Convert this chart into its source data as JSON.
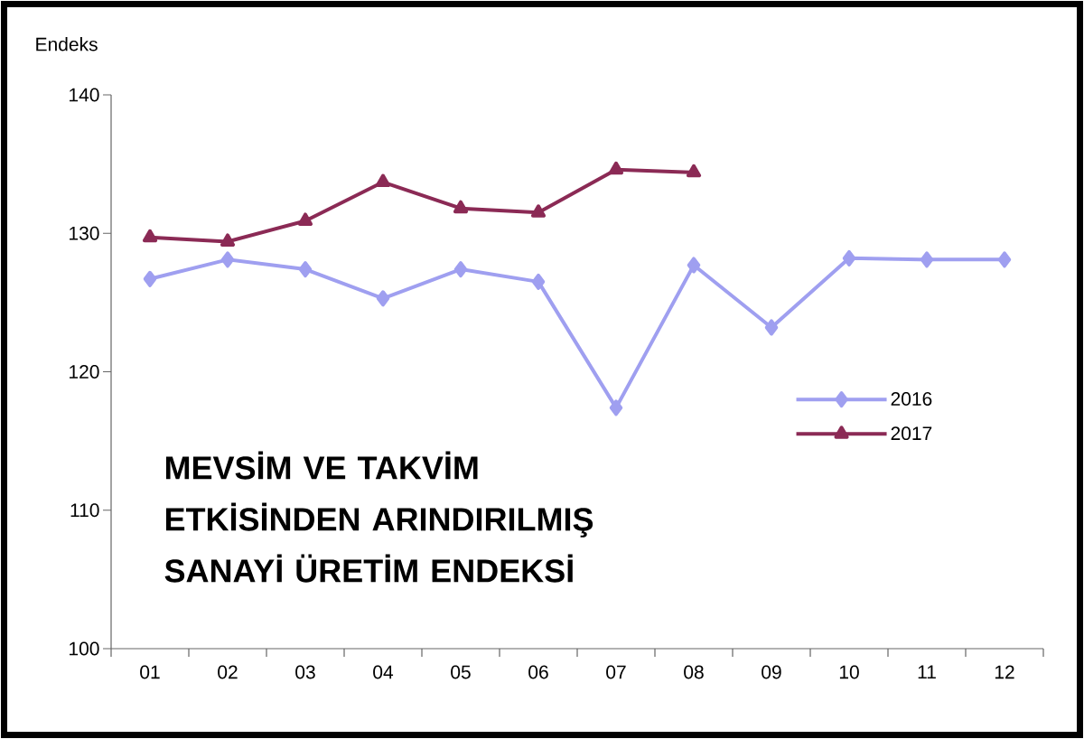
{
  "chart_data": {
    "type": "line",
    "title": "MEVSİM VE TAKVİM ETKİSİNDEN ARINDIRILMIŞ SANAYİ ÜRETİM ENDEKSİ",
    "ylabel": "Endeks",
    "categories": [
      "01",
      "02",
      "03",
      "04",
      "05",
      "06",
      "07",
      "08",
      "09",
      "10",
      "11",
      "12"
    ],
    "series": [
      {
        "name": "2016",
        "color": "#9f9ff0",
        "marker": "diamond",
        "values": [
          126.7,
          128.1,
          127.4,
          125.3,
          127.4,
          126.5,
          117.4,
          127.7,
          123.2,
          128.2,
          128.1,
          128.1
        ]
      },
      {
        "name": "2017",
        "color": "#8b2a55",
        "marker": "triangle",
        "values": [
          129.7,
          129.4,
          130.9,
          133.7,
          131.8,
          131.5,
          134.6,
          134.4,
          null,
          null,
          null,
          null
        ]
      }
    ],
    "ylim": [
      100,
      140
    ],
    "yticks": [
      100,
      110,
      120,
      130,
      140
    ],
    "legend": "right",
    "line_style": "solid",
    "grid": false
  }
}
